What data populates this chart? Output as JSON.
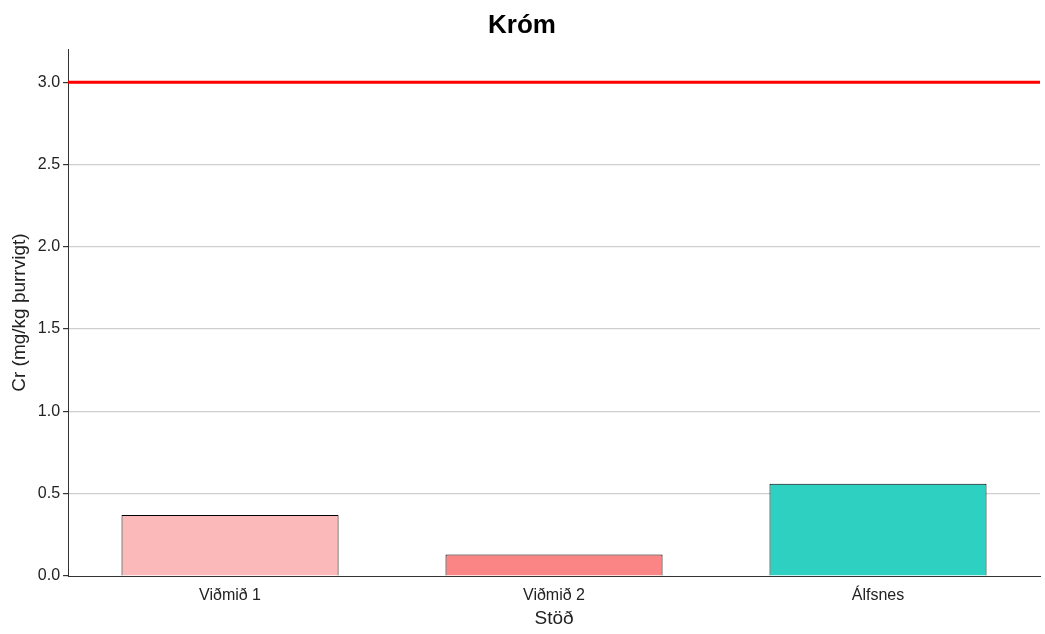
{
  "chart_data": {
    "type": "bar",
    "title": "Króm",
    "xlabel": "Stöð",
    "ylabel": "Cr (mg/kg þurrvigt)",
    "categories": [
      "Viðmið 1",
      "Viðmið 2",
      "Álfsnes"
    ],
    "values": [
      0.37,
      0.13,
      0.56
    ],
    "colors": [
      "#fbb9b9",
      "#fb8584",
      "#2ed1c1"
    ],
    "ylim": [
      0,
      3.2
    ],
    "yticks": [
      {
        "value": 0,
        "label": "0.0"
      },
      0.5,
      {
        "value": 1,
        "label": "1.0"
      },
      1.5,
      {
        "value": 2,
        "label": "2.0"
      },
      2.5,
      {
        "value": 3,
        "label": "3.0"
      }
    ],
    "ref_lines": [
      {
        "axis": "y",
        "value": 3.0,
        "color": "#ff0000"
      }
    ],
    "grid": "y",
    "legend": false
  }
}
